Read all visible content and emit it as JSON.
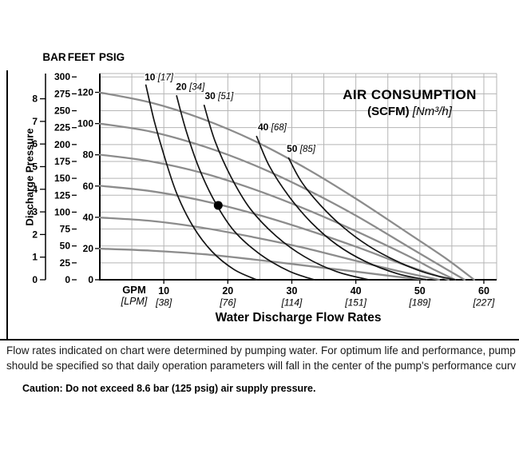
{
  "page": {
    "footer_line1": "Flow rates indicated on chart were determined by pumping water. For optimum life and performance, pump",
    "footer_line2": "should be specified so that daily operation parameters will fall in the center of the pump's performance curv",
    "caution": "Caution: Do not exceed 8.6 bar (125 psig) air supply pressure."
  },
  "chart_data": {
    "type": "line",
    "title": "AIR CONSUMPTION",
    "title_units_bold": "(SCFM)",
    "title_units_italic": "[Nm³/h]",
    "ylabel": "Discharge Pressure",
    "xlabel": "Water Discharge Flow Rates",
    "x_axis": {
      "primary_unit": "GPM",
      "secondary_unit": "[LPM]",
      "range_gpm": [
        0,
        62
      ],
      "ticks_gpm": [
        10,
        20,
        30,
        40,
        50,
        60
      ],
      "ticks_lpm": [
        "[38]",
        "[76]",
        "[114]",
        "[151]",
        "[189]",
        "[227]"
      ]
    },
    "y_axes": [
      {
        "name": "BAR",
        "ticks": [
          8,
          7,
          6,
          5,
          4,
          3,
          2,
          1,
          0
        ],
        "feet_per_unit": 33.46
      },
      {
        "name": "FEET",
        "ticks": [
          300,
          275,
          250,
          225,
          200,
          175,
          150,
          125,
          100,
          75,
          50,
          25,
          0
        ],
        "feet_per_unit": 1
      },
      {
        "name": "PSIG",
        "ticks": [
          120,
          100,
          80,
          60,
          40,
          20,
          0
        ],
        "feet_per_unit": 2.31
      }
    ],
    "y_range_feet": [
      0,
      305
    ],
    "grid": {
      "x_step_gpm": 5,
      "y_step_feet": 25,
      "show": true
    },
    "colors": {
      "grid": "#b5b5b5",
      "pump_curve": "#8c8c8c",
      "air_curve": "#141414",
      "accent": "#000000"
    },
    "pump_curves": [
      {
        "air_psig": 120,
        "points": [
          [
            0,
            277
          ],
          [
            8,
            262
          ],
          [
            16,
            238
          ],
          [
            24,
            206
          ],
          [
            32,
            166
          ],
          [
            40,
            120
          ],
          [
            48,
            70
          ],
          [
            54,
            32
          ],
          [
            58.5,
            0
          ]
        ]
      },
      {
        "air_psig": 100,
        "points": [
          [
            0,
            231
          ],
          [
            8,
            219
          ],
          [
            16,
            198
          ],
          [
            24,
            170
          ],
          [
            32,
            135
          ],
          [
            40,
            95
          ],
          [
            48,
            50
          ],
          [
            53,
            22
          ],
          [
            57,
            0
          ]
        ]
      },
      {
        "air_psig": 80,
        "points": [
          [
            0,
            185
          ],
          [
            8,
            175
          ],
          [
            16,
            158
          ],
          [
            24,
            134
          ],
          [
            32,
            105
          ],
          [
            40,
            72
          ],
          [
            48,
            36
          ],
          [
            52,
            16
          ],
          [
            55.5,
            0
          ]
        ]
      },
      {
        "air_psig": 60,
        "points": [
          [
            0,
            139
          ],
          [
            8,
            131
          ],
          [
            16,
            117
          ],
          [
            24,
            98
          ],
          [
            32,
            75
          ],
          [
            40,
            49
          ],
          [
            47,
            24
          ],
          [
            52,
            8
          ],
          [
            54.5,
            0
          ]
        ]
      },
      {
        "air_psig": 40,
        "points": [
          [
            0,
            92
          ],
          [
            8,
            87
          ],
          [
            16,
            77
          ],
          [
            24,
            63
          ],
          [
            32,
            47
          ],
          [
            40,
            28
          ],
          [
            47,
            12
          ],
          [
            53,
            0
          ]
        ]
      },
      {
        "air_psig": 20,
        "points": [
          [
            0,
            46
          ],
          [
            8,
            43
          ],
          [
            16,
            38
          ],
          [
            24,
            30
          ],
          [
            32,
            21
          ],
          [
            40,
            12
          ],
          [
            46,
            5
          ],
          [
            51,
            0
          ]
        ]
      }
    ],
    "air_consumption_curves": [
      {
        "scfm": "10",
        "nm3h": "[17]",
        "label_at": [
          7.0,
          295
        ],
        "points": [
          [
            7.2,
            288
          ],
          [
            8.5,
            235
          ],
          [
            10,
            185
          ],
          [
            12,
            128
          ],
          [
            14.5,
            80
          ],
          [
            17.5,
            42
          ],
          [
            21,
            15
          ],
          [
            24.5,
            0
          ]
        ]
      },
      {
        "scfm": "20",
        "nm3h": "[34]",
        "label_at": [
          11.9,
          281
        ],
        "points": [
          [
            12,
            272
          ],
          [
            13.5,
            220
          ],
          [
            15.5,
            165
          ],
          [
            18,
            115
          ],
          [
            21,
            72
          ],
          [
            25,
            38
          ],
          [
            29.5,
            13
          ],
          [
            33.5,
            0
          ]
        ]
      },
      {
        "scfm": "30",
        "nm3h": "[51]",
        "label_at": [
          16.4,
          267
        ],
        "points": [
          [
            16.3,
            258
          ],
          [
            18,
            205
          ],
          [
            20.5,
            152
          ],
          [
            23.5,
            105
          ],
          [
            27.5,
            65
          ],
          [
            32,
            34
          ],
          [
            37,
            12
          ],
          [
            42,
            0
          ]
        ]
      },
      {
        "scfm": "40",
        "nm3h": "[68]",
        "label_at": [
          24.7,
          221
        ],
        "points": [
          [
            24.5,
            212
          ],
          [
            26.5,
            168
          ],
          [
            29.5,
            124
          ],
          [
            33,
            85
          ],
          [
            37,
            52
          ],
          [
            41.5,
            27
          ],
          [
            46.5,
            9
          ],
          [
            51,
            0
          ]
        ]
      },
      {
        "scfm": "50",
        "nm3h": "[85]",
        "label_at": [
          29.2,
          189
        ],
        "points": [
          [
            29.5,
            180
          ],
          [
            31.5,
            145
          ],
          [
            34.5,
            110
          ],
          [
            38,
            78
          ],
          [
            42,
            50
          ],
          [
            46.5,
            27
          ],
          [
            51,
            10
          ],
          [
            55.5,
            0
          ]
        ]
      }
    ],
    "operating_point": {
      "gpm": 18.5,
      "feet": 110
    }
  }
}
